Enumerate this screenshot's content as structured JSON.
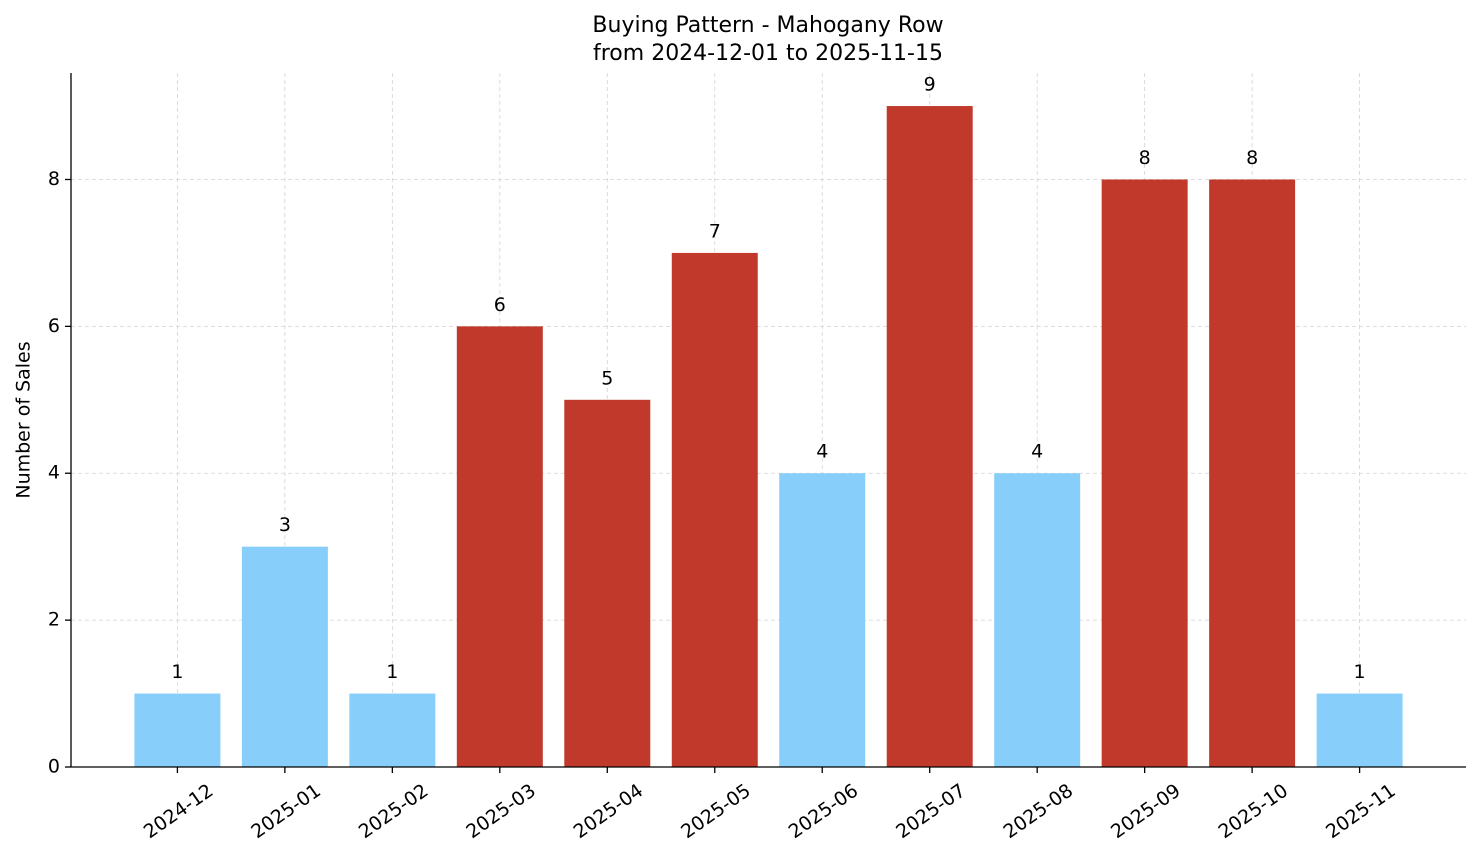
{
  "chart_data": {
    "type": "bar",
    "title": "Buying Pattern - Mahogany Row",
    "subtitle": "from 2024-12-01 to 2025-11-15",
    "y_label": "Number of Sales",
    "categories": [
      "2024-12",
      "2025-01",
      "2025-02",
      "2025-03",
      "2025-04",
      "2025-05",
      "2025-06",
      "2025-07",
      "2025-08",
      "2025-09",
      "2025-10",
      "2025-11"
    ],
    "values": [
      1,
      3,
      1,
      6,
      5,
      7,
      4,
      9,
      4,
      8,
      8,
      1
    ],
    "colors": [
      "#87cefa",
      "#87cefa",
      "#87cefa",
      "#c0392b",
      "#c0392b",
      "#c0392b",
      "#87cefa",
      "#c0392b",
      "#87cefa",
      "#c0392b",
      "#c0392b",
      "#87cefa"
    ],
    "ylim": [
      0,
      9.45
    ],
    "yticks": [
      0,
      2,
      4,
      6,
      8
    ],
    "grid": true
  }
}
